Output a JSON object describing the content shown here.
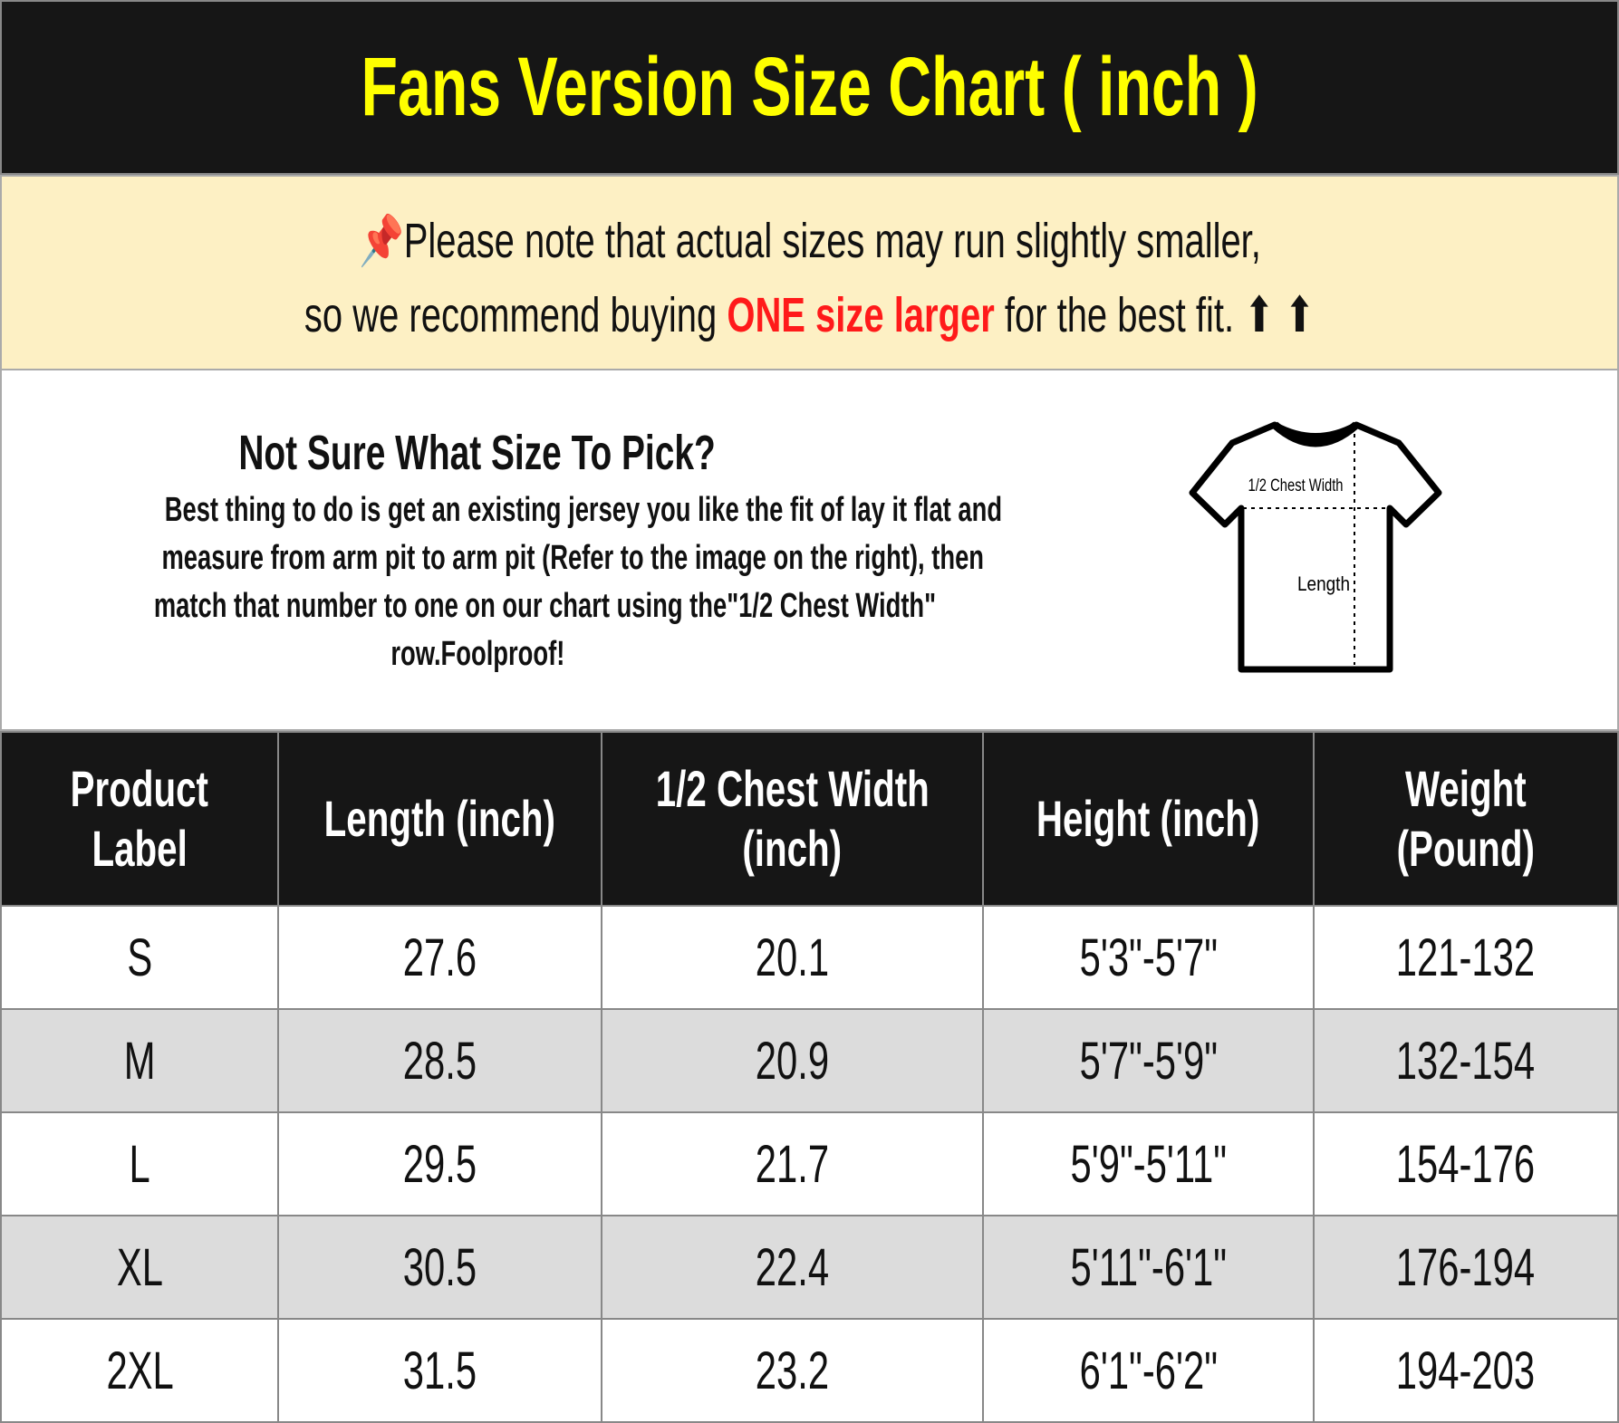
{
  "title": "Fans Version Size Chart ( inch )",
  "notice": {
    "line1": "Please note that actual sizes may run slightly smaller,",
    "line2_pre": "so we recommend buying ",
    "line2_highlight": "ONE size larger",
    "line2_post": " for the best fit. ⬆ ⬆",
    "highlight_color": "#ff1a1a",
    "icon": "pushpin-icon"
  },
  "info": {
    "heading": "Not Sure What Size To Pick?",
    "lines": [
      "Best thing to do is get an existing jersey you like the fit of lay it flat and",
      "measure from arm pit to arm pit (Refer to the image on the right), then",
      "match that number to one on our chart using the\"1/2 Chest Width\"",
      "row.Foolproof!"
    ],
    "diagram": {
      "chest_label": "1/2 Chest Width",
      "length_label": "Length"
    }
  },
  "table": {
    "headers": [
      [
        "Product",
        "Label"
      ],
      [
        "Length (inch)"
      ],
      [
        "1/2 Chest Width",
        "(inch)"
      ],
      [
        "Height (inch)"
      ],
      [
        "Weight",
        "(Pound)"
      ]
    ],
    "rows": [
      [
        "S",
        "27.6",
        "20.1",
        "5'3\"-5'7\"",
        "121-132"
      ],
      [
        "M",
        "28.5",
        "20.9",
        "5'7\"-5'9\"",
        "132-154"
      ],
      [
        "L",
        "29.5",
        "21.7",
        "5'9\"-5'11\"",
        "154-176"
      ],
      [
        "XL",
        "30.5",
        "22.4",
        "5'11\"-6'1\"",
        "176-194"
      ],
      [
        "2XL",
        "31.5",
        "23.2",
        "6'1\"-6'2\"",
        "194-203"
      ]
    ]
  },
  "colors": {
    "title_bg": "#161616",
    "title_text": "#ffff00",
    "notice_bg": "#fdf0c4",
    "row_alt": "#dcdcdc"
  }
}
